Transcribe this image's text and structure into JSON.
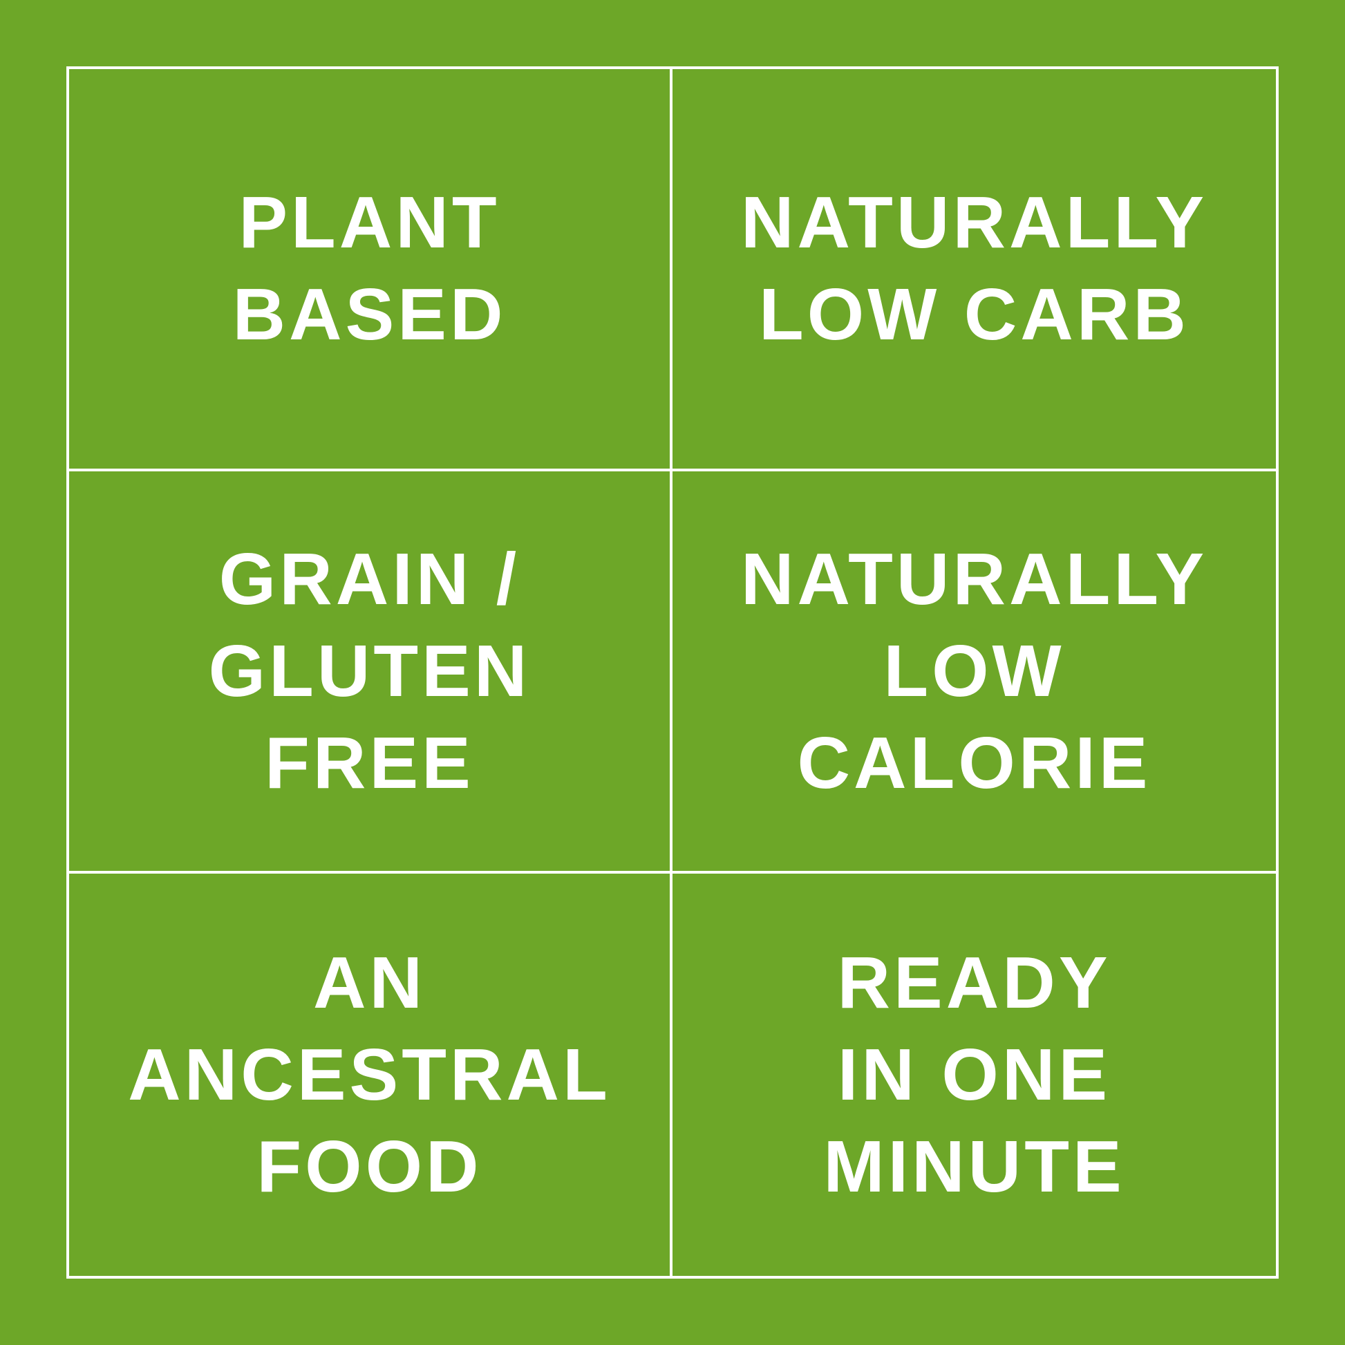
{
  "background_color": "#6da728",
  "text_color": "#ffffff",
  "features": [
    {
      "label": "PLANT\nBASED"
    },
    {
      "label": "NATURALLY\nLOW CARB"
    },
    {
      "label": "GRAIN /\nGLUTEN\nFREE"
    },
    {
      "label": "NATURALLY\nLOW\nCALORIE"
    },
    {
      "label": "AN\nANCESTRAL\nFOOD"
    },
    {
      "label": "READY\nIN ONE\nMINUTE"
    }
  ]
}
